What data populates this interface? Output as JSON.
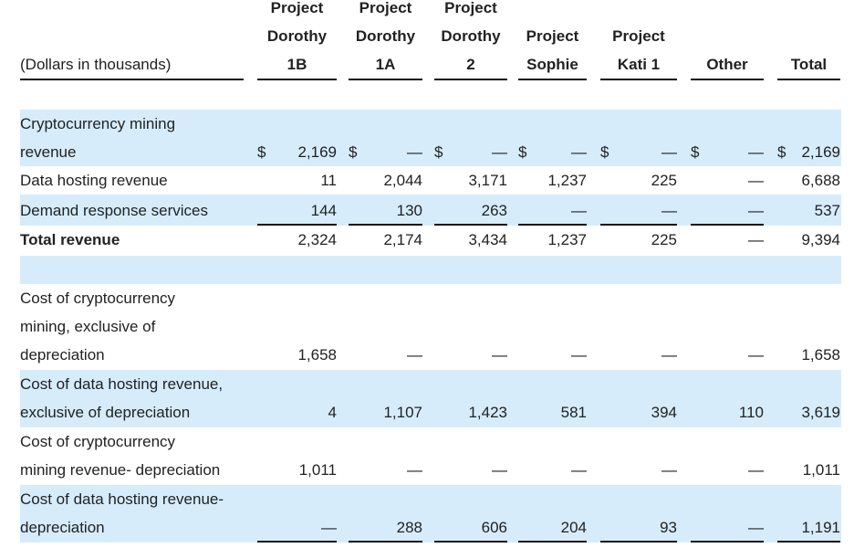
{
  "header": {
    "label": "(Dollars in thousands)",
    "columns": [
      {
        "lines": [
          "Project",
          "Dorothy",
          "1B"
        ]
      },
      {
        "lines": [
          "Project",
          "Dorothy",
          "1A"
        ]
      },
      {
        "lines": [
          "Project",
          "Dorothy",
          "2"
        ]
      },
      {
        "lines": [
          "Project",
          "Sophie"
        ]
      },
      {
        "lines": [
          "Project",
          "Kati 1"
        ]
      },
      {
        "lines": [
          "Other"
        ]
      },
      {
        "lines": [
          "Total"
        ]
      }
    ]
  },
  "currency_symbol": "$",
  "rows": [
    {
      "label": [
        "Cryptocurrency mining",
        "revenue"
      ],
      "values": [
        "2,169",
        "—",
        "—",
        "—",
        "—",
        "—",
        "2,169"
      ],
      "dollar": true,
      "shaded": true,
      "bold": false
    },
    {
      "label": [
        "Data hosting revenue"
      ],
      "values": [
        "11",
        "2,044",
        "3,171",
        "1,237",
        "225",
        "—",
        "6,688"
      ],
      "dollar": false,
      "shaded": false,
      "bold": false
    },
    {
      "label": [
        "Demand response services"
      ],
      "values": [
        "144",
        "130",
        "263",
        "—",
        "—",
        "—",
        "537"
      ],
      "dollar": false,
      "shaded": true,
      "bold": false
    },
    {
      "label": [
        "Total revenue"
      ],
      "values": [
        "2,324",
        "2,174",
        "3,434",
        "1,237",
        "225",
        "—",
        "9,394"
      ],
      "dollar": false,
      "shaded": false,
      "bold": true
    },
    {
      "label": [],
      "values": [],
      "dollar": false,
      "shaded": true,
      "bold": false
    },
    {
      "label": [
        "Cost of cryptocurrency",
        "mining, exclusive of",
        "depreciation"
      ],
      "values": [
        "1,658",
        "—",
        "—",
        "—",
        "—",
        "—",
        "1,658"
      ],
      "dollar": false,
      "shaded": false,
      "bold": false
    },
    {
      "label": [
        "Cost of data hosting revenue,",
        "exclusive of depreciation"
      ],
      "values": [
        "4",
        "1,107",
        "1,423",
        "581",
        "394",
        "110",
        "3,619"
      ],
      "dollar": false,
      "shaded": true,
      "bold": false
    },
    {
      "label": [
        "Cost of cryptocurrency",
        "mining revenue- depreciation"
      ],
      "values": [
        "1,011",
        "—",
        "—",
        "—",
        "—",
        "—",
        "1,011"
      ],
      "dollar": false,
      "shaded": false,
      "bold": false
    },
    {
      "label": [
        "Cost of data hosting revenue-",
        "depreciation"
      ],
      "values": [
        "—",
        "288",
        "606",
        "204",
        "93",
        "—",
        "1,191"
      ],
      "dollar": false,
      "shaded": true,
      "bold": false
    }
  ]
}
